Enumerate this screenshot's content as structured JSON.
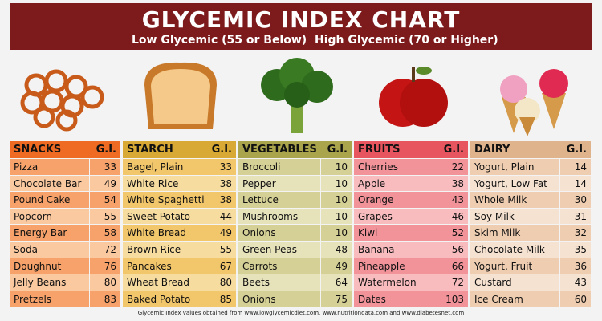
{
  "header": {
    "title": "GLYCEMIC INDEX CHART",
    "low": "Low Glycemic (55 or Below)",
    "high": "High Glycemic (70 or Higher)"
  },
  "groups": [
    {
      "name": "SNACKS",
      "gi": "G.I.",
      "rows": [
        [
          "Pizza",
          33
        ],
        [
          "Chocolate Bar",
          49
        ],
        [
          "Pound Cake",
          54
        ],
        [
          "Popcorn",
          55
        ],
        [
          "Energy Bar",
          58
        ],
        [
          "Soda",
          72
        ],
        [
          "Doughnut",
          76
        ],
        [
          "Jelly Beans",
          80
        ],
        [
          "Pretzels",
          83
        ]
      ]
    },
    {
      "name": "STARCH",
      "gi": "G.I.",
      "rows": [
        [
          "Bagel, Plain",
          33
        ],
        [
          "White Rice",
          38
        ],
        [
          "White Spaghetti",
          38
        ],
        [
          "Sweet Potato",
          44
        ],
        [
          "White Bread",
          49
        ],
        [
          "Brown Rice",
          55
        ],
        [
          "Pancakes",
          67
        ],
        [
          "Wheat Bread",
          80
        ],
        [
          "Baked Potato",
          85
        ]
      ]
    },
    {
      "name": "VEGETABLES",
      "gi": "G.I.",
      "rows": [
        [
          "Broccoli",
          10
        ],
        [
          "Pepper",
          10
        ],
        [
          "Lettuce",
          10
        ],
        [
          "Mushrooms",
          10
        ],
        [
          "Onions",
          10
        ],
        [
          "Green Peas",
          48
        ],
        [
          "Carrots",
          49
        ],
        [
          "Beets",
          64
        ],
        [
          "Onions",
          75
        ]
      ]
    },
    {
      "name": "FRUITS",
      "gi": "G.I.",
      "rows": [
        [
          "Cherries",
          22
        ],
        [
          "Apple",
          38
        ],
        [
          "Orange",
          43
        ],
        [
          "Grapes",
          46
        ],
        [
          "Kiwi",
          52
        ],
        [
          "Banana",
          56
        ],
        [
          "Pineapple",
          66
        ],
        [
          "Watermelon",
          72
        ],
        [
          "Dates",
          103
        ]
      ]
    },
    {
      "name": "DAIRY",
      "gi": "G.I.",
      "rows": [
        [
          "Yogurt, Plain",
          14
        ],
        [
          "Yogurt, Low Fat",
          14
        ],
        [
          "Whole Milk",
          30
        ],
        [
          "Soy Milk",
          31
        ],
        [
          "Skim Milk",
          32
        ],
        [
          "Chocolate Milk",
          35
        ],
        [
          "Yogurt, Fruit",
          36
        ],
        [
          "Custard",
          43
        ],
        [
          "Ice Cream",
          60
        ]
      ]
    }
  ],
  "footer": "Glycemic Index values obtained from www.lowglycemicdiet.com, www.nutritiondata.com and www.diabetesnet.com"
}
